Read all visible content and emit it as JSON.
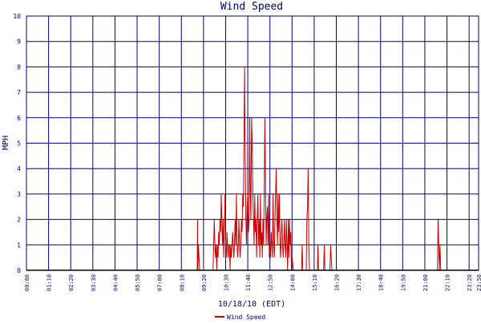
{
  "chart_data": {
    "type": "line",
    "title": "Wind Speed",
    "xlabel": "10/18/10 (EDT)",
    "ylabel": "MPH",
    "ylim": [
      0,
      10
    ],
    "xlim_minutes": [
      0,
      1430
    ],
    "grid": true,
    "legend_placement": "bottom",
    "colors": {
      "series": "#cc0000",
      "grid": "#000080",
      "text": "#000080",
      "axis": "#000000",
      "background": "#ffffff"
    },
    "y_ticks": [
      "0",
      "1",
      "2",
      "3",
      "4",
      "5",
      "6",
      "7",
      "8",
      "9",
      "10"
    ],
    "x_ticks": [
      "00:00",
      "01:10",
      "02:20",
      "03:30",
      "04:40",
      "05:50",
      "07:00",
      "08:10",
      "09:20",
      "10:30",
      "11:40",
      "12:50",
      "14:00",
      "15:10",
      "16:20",
      "17:30",
      "18:40",
      "19:50",
      "21:00",
      "22:10",
      "23:20",
      "23:50"
    ],
    "series": [
      {
        "name": "Wind Speed",
        "points": [
          [
            "00:00",
            0
          ],
          [
            "09:00",
            0
          ],
          [
            "09:01",
            2
          ],
          [
            "09:02",
            0
          ],
          [
            "09:04",
            1
          ],
          [
            "09:06",
            0.5
          ],
          [
            "09:08",
            0
          ],
          [
            "09:50",
            0
          ],
          [
            "09:51",
            0.5
          ],
          [
            "09:53",
            1.5
          ],
          [
            "09:54",
            2
          ],
          [
            "09:56",
            1
          ],
          [
            "09:58",
            0.5
          ],
          [
            "10:00",
            1
          ],
          [
            "10:02",
            0
          ],
          [
            "10:04",
            1
          ],
          [
            "10:06",
            0.5
          ],
          [
            "10:08",
            1.5
          ],
          [
            "10:10",
            1
          ],
          [
            "10:12",
            2
          ],
          [
            "10:14",
            1.5
          ],
          [
            "10:16",
            3
          ],
          [
            "10:18",
            2
          ],
          [
            "10:20",
            1
          ],
          [
            "10:22",
            2
          ],
          [
            "10:24",
            0.5
          ],
          [
            "10:26",
            1.5
          ],
          [
            "10:28",
            3
          ],
          [
            "10:30",
            1
          ],
          [
            "10:32",
            0.5
          ],
          [
            "10:34",
            1.5
          ],
          [
            "10:36",
            1
          ],
          [
            "10:38",
            0.5
          ],
          [
            "10:40",
            1
          ],
          [
            "10:42",
            1
          ],
          [
            "10:44",
            0
          ],
          [
            "10:46",
            1
          ],
          [
            "10:48",
            0.5
          ],
          [
            "10:50",
            1
          ],
          [
            "10:52",
            1.5
          ],
          [
            "10:54",
            1
          ],
          [
            "10:56",
            0.5
          ],
          [
            "10:58",
            1
          ],
          [
            "11:00",
            2
          ],
          [
            "11:02",
            1
          ],
          [
            "11:04",
            3
          ],
          [
            "11:06",
            1
          ],
          [
            "11:08",
            0.5
          ],
          [
            "11:10",
            1
          ],
          [
            "11:12",
            2
          ],
          [
            "11:14",
            1
          ],
          [
            "11:16",
            0.5
          ],
          [
            "11:18",
            1
          ],
          [
            "11:20",
            2
          ],
          [
            "11:22",
            1.5
          ],
          [
            "11:24",
            3
          ],
          [
            "11:26",
            2.5
          ],
          [
            "11:28",
            5
          ],
          [
            "11:30",
            8
          ],
          [
            "11:32",
            4.5
          ],
          [
            "11:34",
            2
          ],
          [
            "11:36",
            1
          ],
          [
            "11:38",
            2.5
          ],
          [
            "11:40",
            3
          ],
          [
            "11:42",
            1.5
          ],
          [
            "11:44",
            2
          ],
          [
            "11:46",
            6
          ],
          [
            "11:48",
            3
          ],
          [
            "11:50",
            2
          ],
          [
            "11:52",
            6
          ],
          [
            "11:54",
            5
          ],
          [
            "11:56",
            3
          ],
          [
            "11:58",
            2
          ],
          [
            "12:00",
            1
          ],
          [
            "12:02",
            3
          ],
          [
            "12:04",
            1.5
          ],
          [
            "12:06",
            2
          ],
          [
            "12:08",
            0.5
          ],
          [
            "12:10",
            2
          ],
          [
            "12:12",
            3
          ],
          [
            "12:14",
            1
          ],
          [
            "12:16",
            2
          ],
          [
            "12:18",
            0.5
          ],
          [
            "12:20",
            3
          ],
          [
            "12:22",
            1
          ],
          [
            "12:24",
            1.5
          ],
          [
            "12:26",
            0.5
          ],
          [
            "12:28",
            2
          ],
          [
            "12:30",
            1
          ],
          [
            "12:32",
            3
          ],
          [
            "12:34",
            6
          ],
          [
            "12:36",
            3.5
          ],
          [
            "12:38",
            1
          ],
          [
            "12:40",
            2
          ],
          [
            "12:42",
            2.5
          ],
          [
            "12:44",
            1
          ],
          [
            "12:46",
            3
          ],
          [
            "12:48",
            0.5
          ],
          [
            "12:50",
            1
          ],
          [
            "12:52",
            0.5
          ],
          [
            "12:54",
            1.5
          ],
          [
            "12:56",
            1
          ],
          [
            "12:58",
            0.5
          ],
          [
            "13:00",
            3
          ],
          [
            "13:02",
            1
          ],
          [
            "13:04",
            0.5
          ],
          [
            "13:06",
            2
          ],
          [
            "13:08",
            3
          ],
          [
            "13:10",
            4
          ],
          [
            "13:12",
            2
          ],
          [
            "13:14",
            1
          ],
          [
            "13:16",
            3
          ],
          [
            "13:18",
            1.5
          ],
          [
            "13:20",
            3
          ],
          [
            "13:22",
            1
          ],
          [
            "13:24",
            0.5
          ],
          [
            "13:26",
            1.5
          ],
          [
            "13:28",
            2
          ],
          [
            "13:30",
            1
          ],
          [
            "13:32",
            0.5
          ],
          [
            "13:34",
            1
          ],
          [
            "13:36",
            2
          ],
          [
            "13:38",
            1
          ],
          [
            "13:40",
            0.5
          ],
          [
            "13:42",
            2
          ],
          [
            "13:44",
            1
          ],
          [
            "13:46",
            0
          ],
          [
            "13:48",
            2
          ],
          [
            "13:50",
            0.5
          ],
          [
            "13:52",
            2
          ],
          [
            "13:54",
            1
          ],
          [
            "13:56",
            1.5
          ],
          [
            "13:58",
            0
          ],
          [
            "14:00",
            0.5
          ],
          [
            "14:05",
            0
          ],
          [
            "14:30",
            0
          ],
          [
            "14:32",
            1
          ],
          [
            "14:34",
            0
          ],
          [
            "14:45",
            0
          ],
          [
            "14:47",
            2
          ],
          [
            "14:49",
            2.5
          ],
          [
            "14:51",
            4
          ],
          [
            "14:53",
            1
          ],
          [
            "14:55",
            0
          ],
          [
            "15:20",
            0
          ],
          [
            "15:22",
            1
          ],
          [
            "15:24",
            0
          ],
          [
            "15:40",
            0
          ],
          [
            "15:42",
            1
          ],
          [
            "15:44",
            0
          ],
          [
            "16:00",
            0
          ],
          [
            "16:02",
            1
          ],
          [
            "16:04",
            0.5
          ],
          [
            "16:06",
            0
          ],
          [
            "21:40",
            0
          ],
          [
            "21:42",
            2
          ],
          [
            "21:44",
            1
          ],
          [
            "21:46",
            0
          ],
          [
            "21:48",
            1
          ],
          [
            "21:50",
            0
          ],
          [
            "23:50",
            0
          ]
        ]
      }
    ]
  }
}
